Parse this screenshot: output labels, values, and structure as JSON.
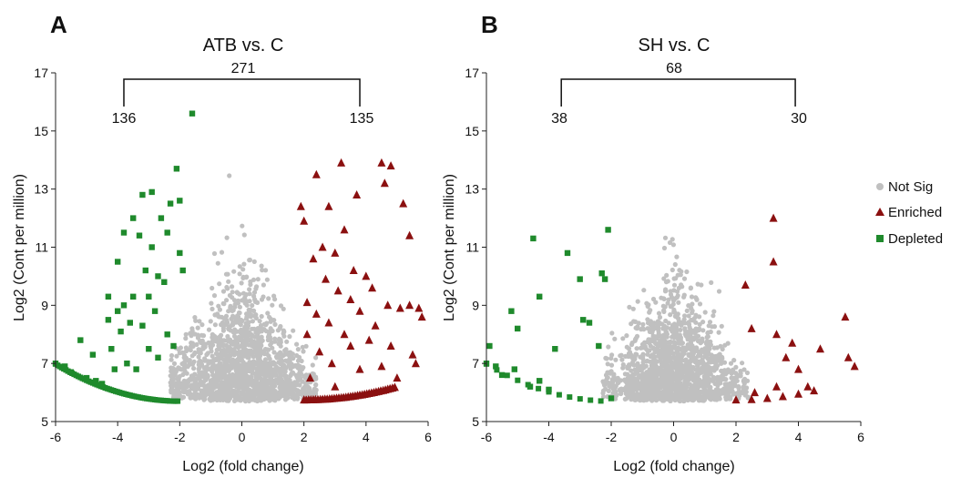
{
  "panels": [
    {
      "letter": "A"
    },
    {
      "letter": "B"
    }
  ],
  "colors": {
    "not_sig": "#c0c0c0",
    "enriched": "#8b1010",
    "depleted": "#1f8a2c",
    "axis": "#222222"
  },
  "legend": {
    "items": [
      {
        "label": "Not Sig",
        "marker": "circle",
        "color": "#c0c0c0"
      },
      {
        "label": "Enriched",
        "marker": "triangle",
        "color": "#8b1010"
      },
      {
        "label": "Depleted",
        "marker": "square",
        "color": "#1f8a2c"
      }
    ],
    "placement": "right"
  },
  "chart_data": [
    {
      "type": "scatter",
      "title": "ATB vs. C",
      "xlabel": "Log2 (fold change)",
      "ylabel": "Log2 (Cont per million)",
      "xlim": [
        -6,
        6
      ],
      "ylim": [
        5,
        17
      ],
      "xticks": [
        -6,
        -4,
        -2,
        0,
        2,
        4,
        6
      ],
      "yticks": [
        5,
        7,
        9,
        11,
        13,
        15,
        17
      ],
      "grid": false,
      "bracket": {
        "total": "271",
        "left": "136",
        "right": "135",
        "x_left": -3.8,
        "x_right": 3.8
      },
      "counts": {
        "enriched": 135,
        "depleted": 136
      },
      "series": [
        {
          "name": "Depleted",
          "marker": "square",
          "points": [
            [
              -6.0,
              7.0
            ],
            [
              -5.7,
              6.9
            ],
            [
              -5.5,
              6.7
            ],
            [
              -5.2,
              7.8
            ],
            [
              -5.0,
              6.5
            ],
            [
              -4.8,
              7.3
            ],
            [
              -4.7,
              6.4
            ],
            [
              -4.5,
              6.3
            ],
            [
              -4.3,
              9.3
            ],
            [
              -4.3,
              8.5
            ],
            [
              -4.2,
              7.5
            ],
            [
              -4.1,
              6.8
            ],
            [
              -4.0,
              10.5
            ],
            [
              -4.0,
              8.8
            ],
            [
              -3.9,
              8.1
            ],
            [
              -3.8,
              11.5
            ],
            [
              -3.8,
              9.0
            ],
            [
              -3.7,
              7.0
            ],
            [
              -3.6,
              8.4
            ],
            [
              -3.5,
              12.0
            ],
            [
              -3.5,
              9.3
            ],
            [
              -3.4,
              6.8
            ],
            [
              -3.3,
              11.4
            ],
            [
              -3.2,
              12.8
            ],
            [
              -3.2,
              8.3
            ],
            [
              -3.1,
              10.2
            ],
            [
              -3.0,
              9.3
            ],
            [
              -3.0,
              7.5
            ],
            [
              -2.9,
              12.9
            ],
            [
              -2.9,
              11.0
            ],
            [
              -2.8,
              8.8
            ],
            [
              -2.7,
              10.0
            ],
            [
              -2.7,
              7.2
            ],
            [
              -2.6,
              12.0
            ],
            [
              -2.5,
              9.8
            ],
            [
              -2.4,
              11.5
            ],
            [
              -2.4,
              8.0
            ],
            [
              -2.3,
              12.5
            ],
            [
              -2.2,
              7.6
            ],
            [
              -2.1,
              13.7
            ],
            [
              -2.0,
              12.6
            ],
            [
              -2.0,
              10.8
            ],
            [
              -1.9,
              10.2
            ],
            [
              -1.6,
              15.6
            ]
          ]
        },
        {
          "name": "Enriched",
          "marker": "triangle",
          "points": [
            [
              1.9,
              12.4
            ],
            [
              2.0,
              11.9
            ],
            [
              2.1,
              9.1
            ],
            [
              2.1,
              8.0
            ],
            [
              2.2,
              6.5
            ],
            [
              2.3,
              10.6
            ],
            [
              2.4,
              13.5
            ],
            [
              2.4,
              8.7
            ],
            [
              2.5,
              7.4
            ],
            [
              2.6,
              11.0
            ],
            [
              2.7,
              9.9
            ],
            [
              2.8,
              12.4
            ],
            [
              2.8,
              8.4
            ],
            [
              2.9,
              7.0
            ],
            [
              3.0,
              6.2
            ],
            [
              3.0,
              10.8
            ],
            [
              3.1,
              9.5
            ],
            [
              3.2,
              13.9
            ],
            [
              3.3,
              8.0
            ],
            [
              3.3,
              11.6
            ],
            [
              3.5,
              7.6
            ],
            [
              3.5,
              9.2
            ],
            [
              3.6,
              10.2
            ],
            [
              3.7,
              12.8
            ],
            [
              3.8,
              6.8
            ],
            [
              3.8,
              8.8
            ],
            [
              4.0,
              10.0
            ],
            [
              4.1,
              7.8
            ],
            [
              4.2,
              9.6
            ],
            [
              4.3,
              8.3
            ],
            [
              4.5,
              13.9
            ],
            [
              4.5,
              6.9
            ],
            [
              4.6,
              13.2
            ],
            [
              4.7,
              9.0
            ],
            [
              4.8,
              13.8
            ],
            [
              4.8,
              7.6
            ],
            [
              5.0,
              6.5
            ],
            [
              5.1,
              8.9
            ],
            [
              5.2,
              12.5
            ],
            [
              5.4,
              11.4
            ],
            [
              5.4,
              9.0
            ],
            [
              5.5,
              7.3
            ],
            [
              5.6,
              7.0
            ],
            [
              5.7,
              8.9
            ],
            [
              5.8,
              8.6
            ]
          ]
        }
      ]
    },
    {
      "type": "scatter",
      "title": "SH vs. C",
      "xlabel": "Log2 (fold change)",
      "ylabel": "Log2 (Cont per million)",
      "xlim": [
        -6,
        6
      ],
      "ylim": [
        5,
        17
      ],
      "xticks": [
        -6,
        -4,
        -2,
        0,
        2,
        4,
        6
      ],
      "yticks": [
        5,
        7,
        9,
        11,
        13,
        15,
        17
      ],
      "grid": false,
      "bracket": {
        "total": "68",
        "left": "38",
        "right": "30",
        "x_left": -3.6,
        "x_right": 3.9
      },
      "counts": {
        "enriched": 30,
        "depleted": 38
      },
      "series": [
        {
          "name": "Depleted",
          "marker": "square",
          "points": [
            [
              -6.0,
              7.0
            ],
            [
              -5.9,
              7.6
            ],
            [
              -5.7,
              6.9
            ],
            [
              -5.5,
              6.6
            ],
            [
              -5.2,
              8.8
            ],
            [
              -5.1,
              6.8
            ],
            [
              -5.0,
              8.2
            ],
            [
              -4.6,
              6.2
            ],
            [
              -4.5,
              11.3
            ],
            [
              -4.3,
              6.4
            ],
            [
              -4.3,
              9.3
            ],
            [
              -4.0,
              6.1
            ],
            [
              -3.8,
              7.5
            ],
            [
              -3.4,
              10.8
            ],
            [
              -3.0,
              9.9
            ],
            [
              -2.9,
              8.5
            ],
            [
              -2.7,
              8.4
            ],
            [
              -2.4,
              7.6
            ],
            [
              -2.3,
              10.1
            ],
            [
              -2.2,
              9.9
            ],
            [
              -2.1,
              11.6
            ],
            [
              -2.0,
              5.8
            ]
          ]
        },
        {
          "name": "Enriched",
          "marker": "triangle",
          "points": [
            [
              2.3,
              9.7
            ],
            [
              2.5,
              8.2
            ],
            [
              2.6,
              6.0
            ],
            [
              3.2,
              12.0
            ],
            [
              3.2,
              10.5
            ],
            [
              3.3,
              8.0
            ],
            [
              3.3,
              6.2
            ],
            [
              3.6,
              7.2
            ],
            [
              3.8,
              7.7
            ],
            [
              4.0,
              6.8
            ],
            [
              4.3,
              6.2
            ],
            [
              4.7,
              7.5
            ],
            [
              5.5,
              8.6
            ],
            [
              5.6,
              7.2
            ],
            [
              5.8,
              6.9
            ]
          ]
        }
      ]
    }
  ]
}
